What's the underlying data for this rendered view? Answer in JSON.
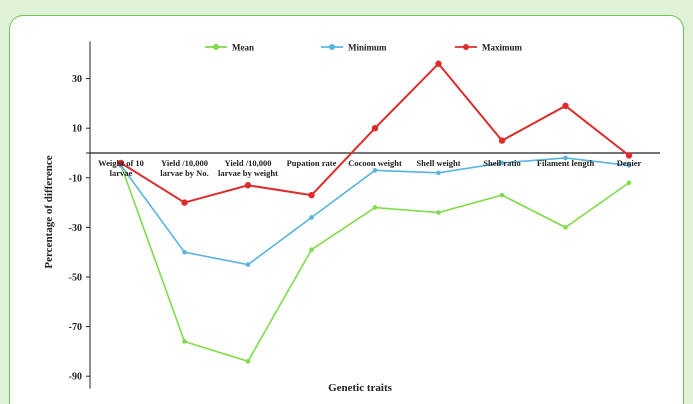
{
  "chart_data": {
    "type": "line",
    "xlabel": "Genetic traits",
    "ylabel": "Percentage of difference",
    "ylim": [
      -95,
      45
    ],
    "yticks": [
      30,
      10,
      -10,
      -30,
      -50,
      -70,
      -90
    ],
    "grid": false,
    "legend": "top",
    "categories": [
      [
        "Weight of 10",
        "larvae"
      ],
      [
        "Yield /10,000",
        "larvae by No."
      ],
      [
        "Yield /10,000",
        "larvae by weight"
      ],
      [
        "Pupation rate"
      ],
      [
        "Cocoon weight"
      ],
      [
        "Shell weight"
      ],
      [
        "Shell ratio"
      ],
      [
        "Filament length"
      ],
      [
        "Denier"
      ]
    ],
    "series": [
      {
        "name": "Mean",
        "color": "#7fdc4a",
        "values": [
          -5,
          -76,
          -84,
          -39,
          -22,
          -24,
          -17,
          -30,
          -12
        ]
      },
      {
        "name": "Minimum",
        "color": "#5ab4e0",
        "values": [
          -5,
          -40,
          -45,
          -26,
          -7,
          -8,
          -4,
          -2,
          -5
        ]
      },
      {
        "name": "Maximum",
        "color": "#dd2c2c",
        "values": [
          -4,
          -20,
          -13,
          -17,
          10,
          36,
          5,
          19,
          -1
        ]
      }
    ]
  }
}
